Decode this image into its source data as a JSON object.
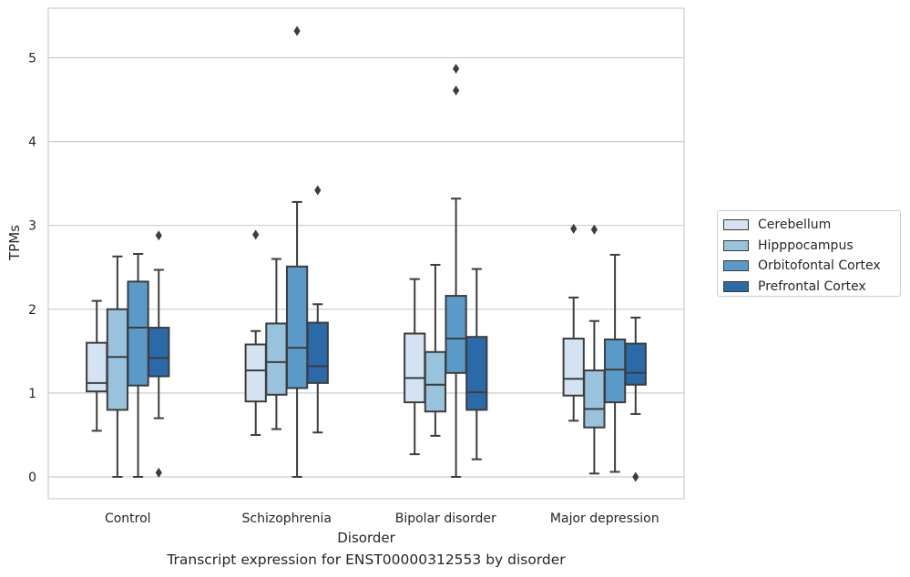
{
  "caption": "Transcript expression for ENST00000312553 by disorder",
  "chart_data": {
    "type": "box",
    "title": "",
    "xlabel": "Disorder",
    "ylabel": "TPMs",
    "ylim": [
      -0.25,
      5.6
    ],
    "yticks": [
      0,
      1,
      2,
      3,
      4,
      5
    ],
    "grid": "horizontal",
    "legend_position": "right",
    "categories": [
      "Control",
      "Schizophrenia",
      "Bipolar disorder",
      "Major depression"
    ],
    "series": [
      {
        "name": "Cerebellum",
        "color": "#d3e3f2",
        "boxes": [
          {
            "whisker_low": 0.55,
            "q1": 1.02,
            "median": 1.12,
            "q3": 1.6,
            "whisker_high": 2.1,
            "outliers": []
          },
          {
            "whisker_low": 0.5,
            "q1": 0.9,
            "median": 1.27,
            "q3": 1.58,
            "whisker_high": 1.74,
            "outliers": [
              2.89
            ]
          },
          {
            "whisker_low": 0.27,
            "q1": 0.89,
            "median": 1.18,
            "q3": 1.71,
            "whisker_high": 2.36,
            "outliers": []
          },
          {
            "whisker_low": 0.67,
            "q1": 0.97,
            "median": 1.17,
            "q3": 1.65,
            "whisker_high": 2.14,
            "outliers": [
              2.96
            ]
          }
        ]
      },
      {
        "name": "Hipppocampus",
        "color": "#99c2dc",
        "boxes": [
          {
            "whisker_low": 0.0,
            "q1": 0.8,
            "median": 1.43,
            "q3": 2.0,
            "whisker_high": 2.63,
            "outliers": []
          },
          {
            "whisker_low": 0.57,
            "q1": 0.98,
            "median": 1.37,
            "q3": 1.83,
            "whisker_high": 2.6,
            "outliers": []
          },
          {
            "whisker_low": 0.49,
            "q1": 0.78,
            "median": 1.1,
            "q3": 1.49,
            "whisker_high": 2.53,
            "outliers": []
          },
          {
            "whisker_low": 0.04,
            "q1": 0.59,
            "median": 0.81,
            "q3": 1.27,
            "whisker_high": 1.86,
            "outliers": [
              2.95
            ]
          }
        ]
      },
      {
        "name": "Orbitofontal Cortex",
        "color": "#5b9ac8",
        "boxes": [
          {
            "whisker_low": 0.0,
            "q1": 1.09,
            "median": 1.78,
            "q3": 2.33,
            "whisker_high": 2.66,
            "outliers": []
          },
          {
            "whisker_low": 0.0,
            "q1": 1.06,
            "median": 1.54,
            "q3": 2.51,
            "whisker_high": 3.28,
            "outliers": [
              5.32
            ]
          },
          {
            "whisker_low": 0.0,
            "q1": 1.24,
            "median": 1.65,
            "q3": 2.16,
            "whisker_high": 3.32,
            "outliers": [
              4.87,
              4.61
            ]
          },
          {
            "whisker_low": 0.06,
            "q1": 0.89,
            "median": 1.28,
            "q3": 1.64,
            "whisker_high": 2.65,
            "outliers": []
          }
        ]
      },
      {
        "name": "Prefrontal Cortex",
        "color": "#2b6aa8",
        "boxes": [
          {
            "whisker_low": 0.7,
            "q1": 1.2,
            "median": 1.42,
            "q3": 1.78,
            "whisker_high": 2.47,
            "outliers": [
              2.88,
              0.05
            ]
          },
          {
            "whisker_low": 0.53,
            "q1": 1.12,
            "median": 1.32,
            "q3": 1.84,
            "whisker_high": 2.06,
            "outliers": [
              3.42
            ]
          },
          {
            "whisker_low": 0.21,
            "q1": 0.8,
            "median": 1.01,
            "q3": 1.67,
            "whisker_high": 2.48,
            "outliers": []
          },
          {
            "whisker_low": 0.75,
            "q1": 1.1,
            "median": 1.24,
            "q3": 1.59,
            "whisker_high": 1.9,
            "outliers": [
              0.0
            ]
          }
        ]
      }
    ]
  }
}
